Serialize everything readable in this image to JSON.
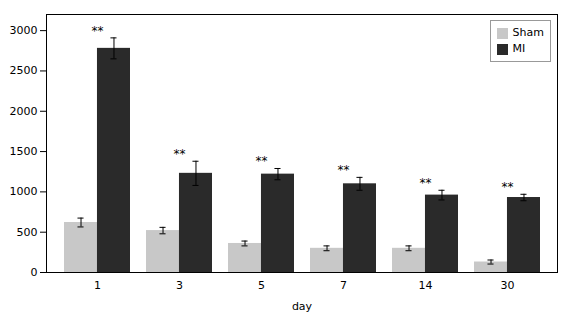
{
  "chart_data": {
    "type": "bar",
    "categories": [
      "1",
      "3",
      "5",
      "7",
      "14",
      "30"
    ],
    "series": [
      {
        "name": "Sham",
        "color": "#c8c8c8",
        "values": [
          620,
          520,
          360,
          300,
          300,
          130
        ],
        "errors": [
          55,
          40,
          30,
          30,
          30,
          25
        ]
      },
      {
        "name": "MI",
        "color": "#2a2a2a",
        "values": [
          2780,
          1230,
          1220,
          1100,
          960,
          930
        ],
        "errors": [
          130,
          150,
          70,
          80,
          60,
          40
        ]
      }
    ],
    "xlabel": "day",
    "ylim": [
      0,
      3200
    ],
    "yticks": [
      0,
      500,
      1000,
      1500,
      2000,
      2500,
      3000
    ],
    "annotations": [
      {
        "category": "1",
        "text": "**"
      },
      {
        "category": "3",
        "text": "**"
      },
      {
        "category": "5",
        "text": "**"
      },
      {
        "category": "7",
        "text": "**"
      },
      {
        "category": "14",
        "text": "**"
      },
      {
        "category": "30",
        "text": "**"
      }
    ],
    "legend": "upper right",
    "grid": false
  }
}
